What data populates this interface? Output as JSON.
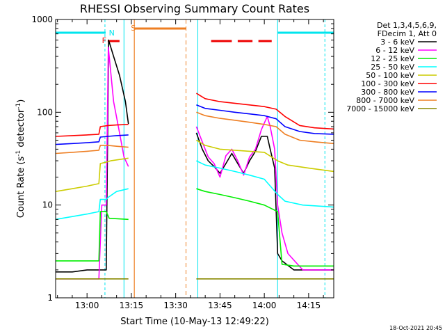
{
  "chart_data": {
    "type": "line",
    "title": "RHESSI Observing Summary Count Rates",
    "xlabel": "Start Time (10-May-13 12:49:22)",
    "ylabel": "Count Rate (s",
    "ylabel_sup1": "-1",
    "ylabel_mid": " detector",
    "ylabel_sup2": "-1",
    "ylabel_end": ")",
    "yscale": "log",
    "ylim": [
      1,
      1000
    ],
    "xlim_minutes": [
      49.37,
      143.5
    ],
    "x_unit": "minutes after 12:00 UT",
    "x_ticks": [
      {
        "label": "13:00",
        "value": 60
      },
      {
        "label": "13:15",
        "value": 75
      },
      {
        "label": "13:30",
        "value": 90
      },
      {
        "label": "13:45",
        "value": 105
      },
      {
        "label": "14:00",
        "value": 120
      },
      {
        "label": "14:15",
        "value": 135
      }
    ],
    "y_ticks": [
      {
        "label": "1",
        "value": 1
      },
      {
        "label": "10",
        "value": 10
      },
      {
        "label": "100",
        "value": 100
      },
      {
        "label": "1000",
        "value": 1000
      }
    ],
    "legend_header": [
      "Det 1,3,4,5,6,9,",
      "FDecim 1, Att 0"
    ],
    "legend_position": "right, outside plot",
    "timestamp": "18-Oct-2021 20:45",
    "flag_letters": {
      "flare": "F",
      "saa": "S",
      "night": "N"
    },
    "colors": {
      "night_bar": "#00e5ee",
      "saa_bar": "#ee7e22",
      "flare_bar": "#ee0000"
    },
    "flags": {
      "night": [
        [
          49.37,
          66.3
        ],
        [
          124.5,
          143.5
        ]
      ],
      "saa": [
        [
          76.0,
          93.5
        ]
      ],
      "flare": [
        [
          67.0,
          71.0
        ],
        [
          102.0,
          109.0
        ],
        [
          111.0,
          116.0
        ],
        [
          118.0,
          122.5
        ]
      ]
    },
    "data_gaps": [
      [
        74.0,
        97.0
      ]
    ],
    "series": [
      {
        "name": "3 - 6 keV",
        "color": "#000000",
        "points": [
          [
            49.4,
            1.9
          ],
          [
            55,
            1.9
          ],
          [
            60,
            2.0
          ],
          [
            64,
            2.0
          ],
          [
            66.5,
            2.0
          ],
          [
            67.3,
            600
          ],
          [
            69,
            400
          ],
          [
            71,
            250
          ],
          [
            73,
            130
          ],
          [
            74,
            75
          ],
          [
            97,
            60
          ],
          [
            99,
            40
          ],
          [
            101,
            30
          ],
          [
            103,
            26
          ],
          [
            105,
            22
          ],
          [
            107,
            28
          ],
          [
            109,
            36
          ],
          [
            111,
            28
          ],
          [
            113,
            22
          ],
          [
            115,
            30
          ],
          [
            117,
            38
          ],
          [
            119,
            55
          ],
          [
            121,
            55
          ],
          [
            122,
            40
          ],
          [
            123.5,
            25
          ],
          [
            124.5,
            3
          ],
          [
            126,
            2.5
          ],
          [
            130,
            2
          ],
          [
            137,
            2
          ],
          [
            143.5,
            2
          ]
        ]
      },
      {
        "name": "6 - 12 keV",
        "color": "#ff00ff",
        "points": [
          [
            49.4,
            1.6
          ],
          [
            55,
            1.6
          ],
          [
            60,
            1.6
          ],
          [
            64,
            1.6
          ],
          [
            65,
            10
          ],
          [
            66.5,
            10
          ],
          [
            67.2,
            500
          ],
          [
            69,
            130
          ],
          [
            71,
            60
          ],
          [
            72.5,
            33
          ],
          [
            74,
            26
          ],
          [
            97,
            70
          ],
          [
            99,
            48
          ],
          [
            101,
            33
          ],
          [
            103,
            28
          ],
          [
            105,
            20
          ],
          [
            107,
            34
          ],
          [
            109,
            40
          ],
          [
            111,
            30
          ],
          [
            113,
            21
          ],
          [
            115,
            33
          ],
          [
            117,
            40
          ],
          [
            119,
            65
          ],
          [
            121,
            90
          ],
          [
            122,
            70
          ],
          [
            123.5,
            40
          ],
          [
            124.5,
            10
          ],
          [
            126,
            5
          ],
          [
            128,
            3
          ],
          [
            133,
            2
          ],
          [
            143.5,
            2
          ]
        ]
      },
      {
        "name": "12 - 25 keV",
        "color": "#00ee00",
        "points": [
          [
            49.4,
            2.5
          ],
          [
            55,
            2.5
          ],
          [
            60,
            2.5
          ],
          [
            64,
            2.5
          ],
          [
            64.5,
            8.5
          ],
          [
            66.5,
            8.5
          ],
          [
            67.5,
            7.2
          ],
          [
            74,
            7.0
          ],
          [
            97,
            15
          ],
          [
            100,
            14
          ],
          [
            105,
            13
          ],
          [
            110,
            12
          ],
          [
            115,
            11
          ],
          [
            120,
            10
          ],
          [
            124.5,
            8.5
          ],
          [
            126,
            2.3
          ],
          [
            130,
            2.2
          ],
          [
            143.5,
            2.2
          ]
        ]
      },
      {
        "name": "25 - 50 keV",
        "color": "#00ffff",
        "points": [
          [
            49.4,
            7.0
          ],
          [
            60,
            8.0
          ],
          [
            64,
            8.5
          ],
          [
            64.5,
            11.5
          ],
          [
            66.5,
            11.5
          ],
          [
            67,
            12
          ],
          [
            70,
            14
          ],
          [
            74,
            15
          ],
          [
            97,
            30
          ],
          [
            100,
            27
          ],
          [
            105,
            25
          ],
          [
            110,
            23
          ],
          [
            115,
            21
          ],
          [
            120,
            19
          ],
          [
            124.5,
            13
          ],
          [
            127,
            11
          ],
          [
            133,
            10
          ],
          [
            143.5,
            9.5
          ]
        ]
      },
      {
        "name": "50 - 100 keV",
        "color": "#cccc00",
        "points": [
          [
            49.4,
            14
          ],
          [
            55,
            15
          ],
          [
            60,
            16
          ],
          [
            64,
            17
          ],
          [
            64.5,
            28
          ],
          [
            66.5,
            29
          ],
          [
            68,
            30
          ],
          [
            74,
            32
          ],
          [
            97,
            50
          ],
          [
            100,
            44
          ],
          [
            105,
            40
          ],
          [
            110,
            39
          ],
          [
            115,
            38
          ],
          [
            120,
            37
          ],
          [
            124.5,
            30
          ],
          [
            128,
            27
          ],
          [
            135,
            25
          ],
          [
            143.5,
            23
          ]
        ]
      },
      {
        "name": "100 - 300 keV",
        "color": "#ff0000",
        "points": [
          [
            49.4,
            55
          ],
          [
            55,
            56
          ],
          [
            60,
            57
          ],
          [
            64,
            58
          ],
          [
            64.5,
            70
          ],
          [
            67,
            72
          ],
          [
            70,
            73
          ],
          [
            74,
            74
          ],
          [
            97,
            160
          ],
          [
            100,
            140
          ],
          [
            105,
            130
          ],
          [
            110,
            125
          ],
          [
            115,
            120
          ],
          [
            120,
            115
          ],
          [
            124,
            108
          ],
          [
            127,
            90
          ],
          [
            132,
            72
          ],
          [
            137,
            68
          ],
          [
            143.5,
            66
          ]
        ]
      },
      {
        "name": "300 - 800 keV",
        "color": "#0000ff",
        "points": [
          [
            49.4,
            45
          ],
          [
            55,
            46
          ],
          [
            60,
            47
          ],
          [
            64,
            48
          ],
          [
            64.5,
            54
          ],
          [
            67,
            55
          ],
          [
            70,
            56
          ],
          [
            74,
            57
          ],
          [
            97,
            120
          ],
          [
            100,
            110
          ],
          [
            105,
            105
          ],
          [
            110,
            100
          ],
          [
            115,
            96
          ],
          [
            120,
            92
          ],
          [
            124,
            85
          ],
          [
            127,
            70
          ],
          [
            132,
            62
          ],
          [
            137,
            59
          ],
          [
            143.5,
            58
          ]
        ]
      },
      {
        "name": "800 - 7000 keV",
        "color": "#ee7e22",
        "points": [
          [
            49.4,
            36
          ],
          [
            55,
            37
          ],
          [
            60,
            38
          ],
          [
            64,
            39
          ],
          [
            64.5,
            44
          ],
          [
            67,
            44
          ],
          [
            70,
            43
          ],
          [
            74,
            42
          ],
          [
            97,
            100
          ],
          [
            100,
            92
          ],
          [
            105,
            86
          ],
          [
            110,
            82
          ],
          [
            115,
            78
          ],
          [
            120,
            74
          ],
          [
            124,
            70
          ],
          [
            127,
            58
          ],
          [
            132,
            50
          ],
          [
            137,
            48
          ],
          [
            143.5,
            46
          ]
        ]
      },
      {
        "name": "7000 - 15000 keV",
        "color": "#888800",
        "points": [
          [
            49.4,
            1.6
          ],
          [
            55,
            1.6
          ],
          [
            60,
            1.6
          ],
          [
            66.5,
            1.6
          ],
          [
            74,
            1.6
          ],
          [
            97,
            1.6
          ],
          [
            105,
            1.6
          ],
          [
            115,
            1.6
          ],
          [
            124.5,
            1.6
          ],
          [
            135,
            1.6
          ],
          [
            143.5,
            1.6
          ]
        ]
      }
    ]
  }
}
